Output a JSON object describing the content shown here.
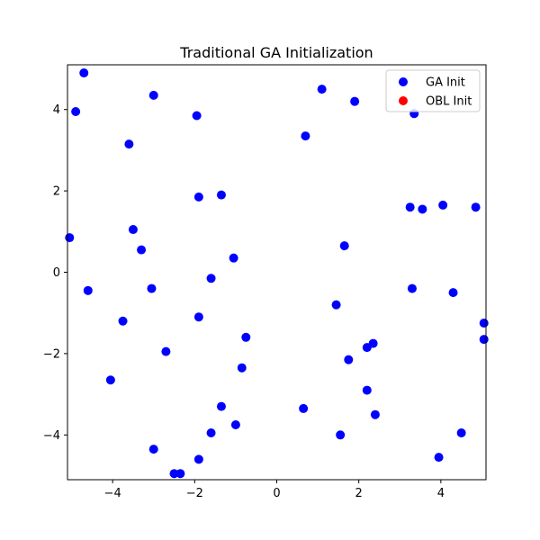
{
  "chart_data": {
    "type": "scatter",
    "title": "Traditional GA Initialization",
    "xlabel": "",
    "ylabel": "",
    "xlim": [
      -5.1,
      5.1
    ],
    "ylim": [
      -5.1,
      5.1
    ],
    "xticks": [
      -4,
      -2,
      0,
      2,
      4
    ],
    "yticks": [
      -4,
      -2,
      0,
      2,
      4
    ],
    "xtick_labels": [
      "−4",
      "−2",
      "0",
      "2",
      "4"
    ],
    "ytick_labels": [
      "−4",
      "−2",
      "0",
      "2",
      "4"
    ],
    "grid": false,
    "legend_placement": "top-right",
    "series": [
      {
        "name": "GA Init",
        "color": "#0000ff",
        "points": [
          [
            -4.7,
            4.9
          ],
          [
            -4.9,
            3.95
          ],
          [
            -5.05,
            0.85
          ],
          [
            -4.6,
            -0.45
          ],
          [
            -3.75,
            -1.2
          ],
          [
            -4.05,
            -2.65
          ],
          [
            -3.6,
            3.15
          ],
          [
            -3.5,
            1.05
          ],
          [
            -3.3,
            0.55
          ],
          [
            -3.05,
            -0.4
          ],
          [
            -3.0,
            4.35
          ],
          [
            -2.7,
            -1.95
          ],
          [
            -3.0,
            -4.35
          ],
          [
            -2.5,
            -4.95
          ],
          [
            -2.35,
            -4.95
          ],
          [
            -1.95,
            3.85
          ],
          [
            -1.9,
            1.85
          ],
          [
            -1.35,
            1.9
          ],
          [
            -1.6,
            -0.15
          ],
          [
            -1.9,
            -1.1
          ],
          [
            -1.05,
            0.35
          ],
          [
            -0.75,
            -1.6
          ],
          [
            -0.85,
            -2.35
          ],
          [
            -1.35,
            -3.3
          ],
          [
            -1.0,
            -3.75
          ],
          [
            -1.6,
            -3.95
          ],
          [
            -1.9,
            -4.6
          ],
          [
            0.7,
            3.35
          ],
          [
            1.1,
            4.5
          ],
          [
            1.9,
            4.2
          ],
          [
            1.65,
            0.65
          ],
          [
            1.45,
            -0.8
          ],
          [
            1.75,
            -2.15
          ],
          [
            2.2,
            -1.85
          ],
          [
            2.35,
            -1.75
          ],
          [
            2.2,
            -2.9
          ],
          [
            2.4,
            -3.5
          ],
          [
            0.65,
            -3.35
          ],
          [
            1.55,
            -4.0
          ],
          [
            3.35,
            3.9
          ],
          [
            3.25,
            1.6
          ],
          [
            3.55,
            1.55
          ],
          [
            4.05,
            1.65
          ],
          [
            4.85,
            1.6
          ],
          [
            3.3,
            -0.4
          ],
          [
            4.3,
            -0.5
          ],
          [
            5.05,
            -1.25
          ],
          [
            5.05,
            -1.65
          ],
          [
            4.5,
            -3.95
          ],
          [
            3.95,
            -4.55
          ]
        ]
      },
      {
        "name": "OBL Init",
        "color": "#ff0000",
        "points": []
      }
    ]
  }
}
